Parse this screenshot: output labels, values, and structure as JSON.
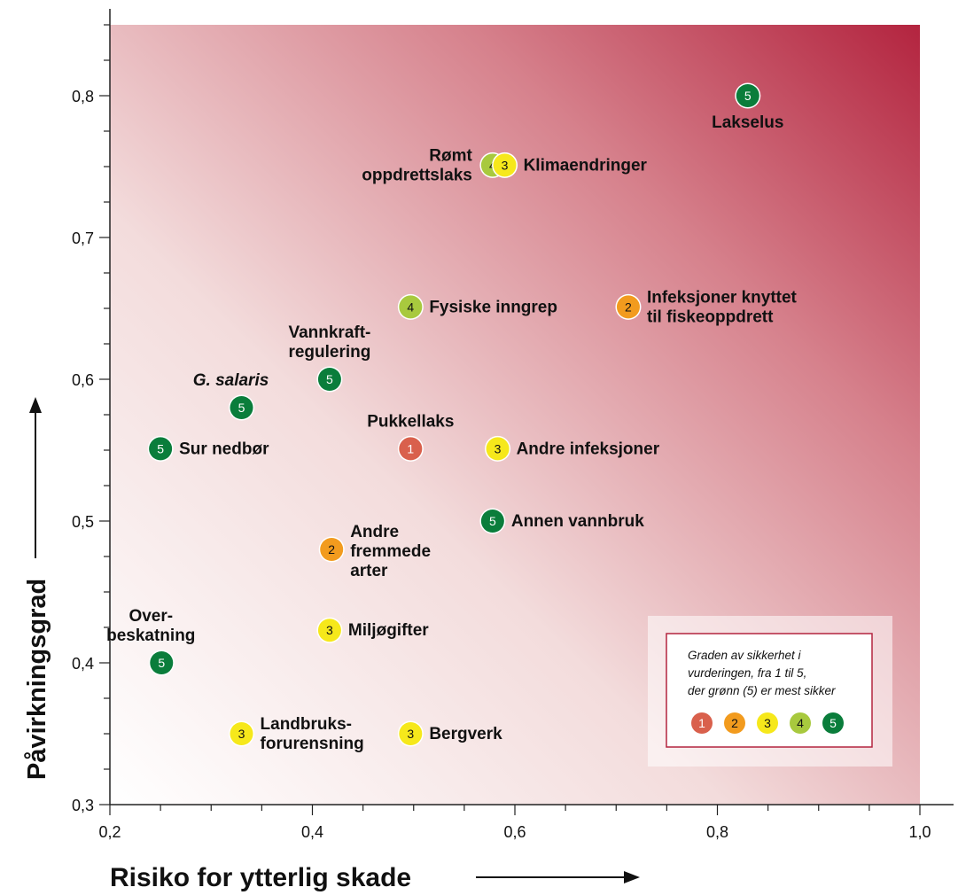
{
  "chart_data": {
    "type": "scatter",
    "xlabel": "Risiko for ytterlig skade",
    "ylabel": "Påvirkningsgrad",
    "xlim": [
      0.2,
      1.0
    ],
    "ylim": [
      0.3,
      0.85
    ],
    "x_ticks": [
      {
        "value": 0.2,
        "label": "0,2"
      },
      {
        "value": 0.4,
        "label": "0,4"
      },
      {
        "value": 0.6,
        "label": "0,6"
      },
      {
        "value": 0.8,
        "label": "0,8"
      },
      {
        "value": 1.0,
        "label": "1,0"
      }
    ],
    "y_ticks": [
      {
        "value": 0.3,
        "label": "0,3"
      },
      {
        "value": 0.4,
        "label": "0,4"
      },
      {
        "value": 0.5,
        "label": "0,5"
      },
      {
        "value": 0.6,
        "label": "0,6"
      },
      {
        "value": 0.7,
        "label": "0,7"
      },
      {
        "value": 0.8,
        "label": "0,8"
      }
    ],
    "grid": false,
    "background_gradient": {
      "from": "#ffffff",
      "to": "#b3243f",
      "direction": "bottom-left to top-right"
    },
    "certainty_colors": {
      "1": "#d9604c",
      "2": "#f29b1e",
      "3": "#f6e81b",
      "4": "#a8c93e",
      "5": "#0a7d3b"
    },
    "points": [
      {
        "label": "Lakselus",
        "x": 0.83,
        "y": 0.8,
        "certainty": "5",
        "label_pos": "below"
      },
      {
        "label": "Rømt oppdrettslaks",
        "label_lines": [
          "Rømt",
          "oppdrettslaks"
        ],
        "x": 0.578,
        "y": 0.751,
        "certainty": "4",
        "label_pos": "left"
      },
      {
        "label": "Klimaendringer",
        "x": 0.59,
        "y": 0.751,
        "certainty": "3",
        "label_pos": "right"
      },
      {
        "label": "Fysiske inngrep",
        "x": 0.497,
        "y": 0.651,
        "certainty": "4",
        "label_pos": "right"
      },
      {
        "label": "Infeksjoner knyttet til fiskeoppdrett",
        "label_lines": [
          "Infeksjoner knyttet",
          "til fiskeoppdrett"
        ],
        "x": 0.712,
        "y": 0.651,
        "certainty": "2",
        "label_pos": "right"
      },
      {
        "label": "Vannkraft-regulering",
        "label_lines": [
          "Vannkraft-",
          "regulering"
        ],
        "x": 0.417,
        "y": 0.6,
        "certainty": "5",
        "label_pos": "above"
      },
      {
        "label": "G. salaris",
        "x": 0.33,
        "y": 0.58,
        "certainty": "5",
        "label_pos": "above-left",
        "italic": true
      },
      {
        "label": "Sur nedbør",
        "x": 0.25,
        "y": 0.551,
        "certainty": "5",
        "label_pos": "right"
      },
      {
        "label": "Pukkellaks",
        "x": 0.497,
        "y": 0.551,
        "certainty": "1",
        "label_pos": "above"
      },
      {
        "label": "Andre infeksjoner",
        "x": 0.583,
        "y": 0.551,
        "certainty": "3",
        "label_pos": "right"
      },
      {
        "label": "Annen vannbruk",
        "x": 0.578,
        "y": 0.5,
        "certainty": "5",
        "label_pos": "right"
      },
      {
        "label": "Andre fremmede arter",
        "label_lines": [
          "Andre",
          "fremmede",
          "arter"
        ],
        "x": 0.419,
        "y": 0.48,
        "certainty": "2",
        "label_pos": "right"
      },
      {
        "label": "Miljøgifter",
        "x": 0.417,
        "y": 0.423,
        "certainty": "3",
        "label_pos": "right"
      },
      {
        "label": "Over-beskatning",
        "label_lines": [
          "Over-",
          "beskatning"
        ],
        "x": 0.251,
        "y": 0.4,
        "certainty": "5",
        "label_pos": "above-left"
      },
      {
        "label": "Landbruks-forurensning",
        "label_lines": [
          "Landbruks-",
          "forurensning"
        ],
        "x": 0.33,
        "y": 0.35,
        "certainty": "3",
        "label_pos": "right"
      },
      {
        "label": "Bergverk",
        "x": 0.497,
        "y": 0.35,
        "certainty": "3",
        "label_pos": "right"
      }
    ],
    "legend": {
      "placement": "bottom-right",
      "lines": [
        "Graden av sikkerhet i",
        "vurderingen, fra 1 til 5,",
        "der grønn (5) er mest sikker"
      ],
      "items": [
        "1",
        "2",
        "3",
        "4",
        "5"
      ]
    }
  }
}
